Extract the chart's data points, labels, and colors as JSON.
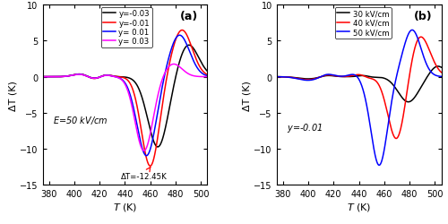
{
  "xlim": [
    375,
    505
  ],
  "ylim": [
    -15,
    10
  ],
  "yticks": [
    -15,
    -10,
    -5,
    0,
    5,
    10
  ],
  "xticks": [
    380,
    400,
    420,
    440,
    460,
    480,
    500
  ],
  "xlabel": "T (K)",
  "ylabel_a": "ΔT (K)",
  "ylabel_b": "ΔT (K)",
  "panel_a": {
    "label": "(a)",
    "annotation_E": "E=50 kV/cm",
    "annotation_dT": "ΔT=-12.45K",
    "series": [
      {
        "label": "y=-0.03",
        "color": "#000000"
      },
      {
        "label": "y=-0.01",
        "color": "#ff0000"
      },
      {
        "label": "y= 0.01",
        "color": "#0000ff"
      },
      {
        "label": "y= 0.03",
        "color": "#ff00ff"
      }
    ]
  },
  "panel_b": {
    "label": "(b)",
    "annotation": "y=-0.01",
    "series": [
      {
        "label": "30 kV/cm",
        "color": "#000000"
      },
      {
        "label": "40 kV/cm",
        "color": "#ff0000"
      },
      {
        "label": "50 kV/cm",
        "color": "#0000ff"
      }
    ]
  }
}
